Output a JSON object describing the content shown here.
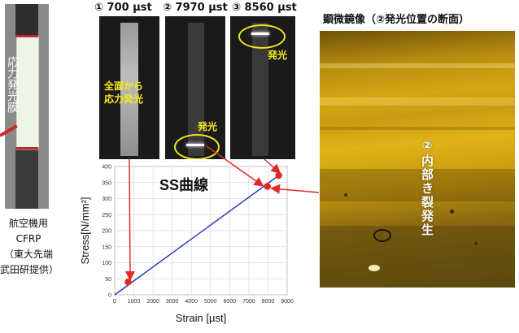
{
  "specimen": {
    "film_label": "応力発光膜",
    "caption": [
      "航空機用",
      "CFRP",
      "（東大先端",
      "武田研提供）"
    ]
  },
  "panels": [
    {
      "title": "① 700 µst",
      "text": "全面から\n応力発光"
    },
    {
      "title": "② 7970 µst",
      "text": "発光"
    },
    {
      "title": "③ 8560 µst",
      "text": "発光"
    }
  ],
  "microscope": {
    "title": "顕微鏡像（②発光位置の断面）",
    "overlay": "②内部き裂発生"
  },
  "colors": {
    "accent_yellow": "#f5e61a",
    "marker_red": "#e52521",
    "line_blue": "#1f2fc8",
    "arrow_red": "#e02a2a"
  },
  "chart_data": {
    "type": "scatter",
    "title": "SS曲線",
    "xlabel": "Strain [µst]",
    "ylabel": "Stress[N/mm²]",
    "xlim": [
      0,
      9000
    ],
    "ylim": [
      0,
      400
    ],
    "xticks": [
      0,
      1000,
      2000,
      3000,
      4000,
      5000,
      6000,
      7000,
      8000,
      9000
    ],
    "yticks": [
      0,
      50,
      100,
      150,
      200,
      250,
      300,
      350,
      400
    ],
    "grid": true,
    "line": {
      "x": [
        0,
        8700
      ],
      "y": [
        0,
        378
      ]
    },
    "points": [
      {
        "x": 700,
        "y": 40
      },
      {
        "x": 7970,
        "y": 338
      },
      {
        "x": 8560,
        "y": 372
      }
    ]
  }
}
